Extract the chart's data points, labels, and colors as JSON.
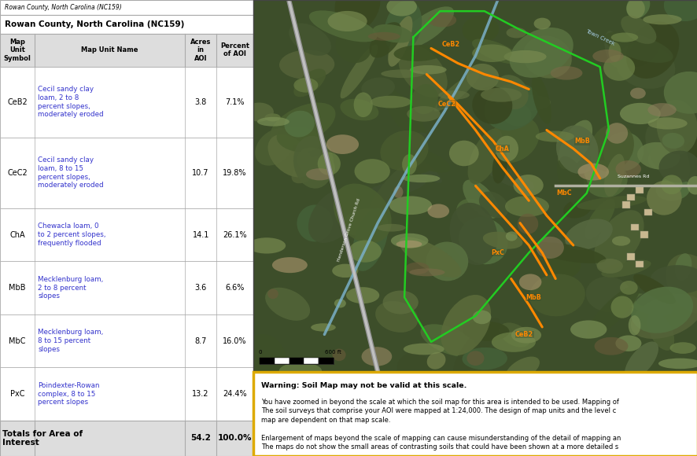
{
  "title_top": "Rowan County, North Carolina (NC159)",
  "title_top_partial": "Rowan County, North Carolina (NC159)",
  "table_border_color": "#aaaaaa",
  "col_headers": [
    "Map\nUnit\nSymbol",
    "Map Unit Name",
    "Acres\nin\nAOI",
    "Percent\nof AOI"
  ],
  "rows": [
    [
      "CeB2",
      "Cecil sandy clay\nloam, 2 to 8\npercent slopes,\nmoderately eroded",
      "3.8",
      "7.1%"
    ],
    [
      "CeC2",
      "Cecil sandy clay\nloam, 8 to 15\npercent slopes,\nmoderately eroded",
      "10.7",
      "19.8%"
    ],
    [
      "ChA",
      "Chewacla loam, 0\nto 2 percent slopes,\nfrequently flooded",
      "14.1",
      "26.1%"
    ],
    [
      "MbB",
      "Mecklenburg loam,\n2 to 8 percent\nslopes",
      "3.6",
      "6.6%"
    ],
    [
      "MbC",
      "Mecklenburg loam,\n8 to 15 percent\nslopes",
      "8.7",
      "16.0%"
    ],
    [
      "PxC",
      "Poindexter-Rowan\ncomplex, 8 to 15\npercent slopes",
      "13.2",
      "24.4%"
    ]
  ],
  "totals_label": "Totals for Area of\nInterest",
  "totals_acres": "54.2",
  "totals_percent": "100.0%",
  "text_color_blue": "#3333cc",
  "text_color_black": "#000000",
  "warning_title": "Warning: Soil Map may not be valid at this scale.",
  "warning_border": "#ddaa00",
  "warning_bg": "#ffffff",
  "map_border_color": "#555555"
}
